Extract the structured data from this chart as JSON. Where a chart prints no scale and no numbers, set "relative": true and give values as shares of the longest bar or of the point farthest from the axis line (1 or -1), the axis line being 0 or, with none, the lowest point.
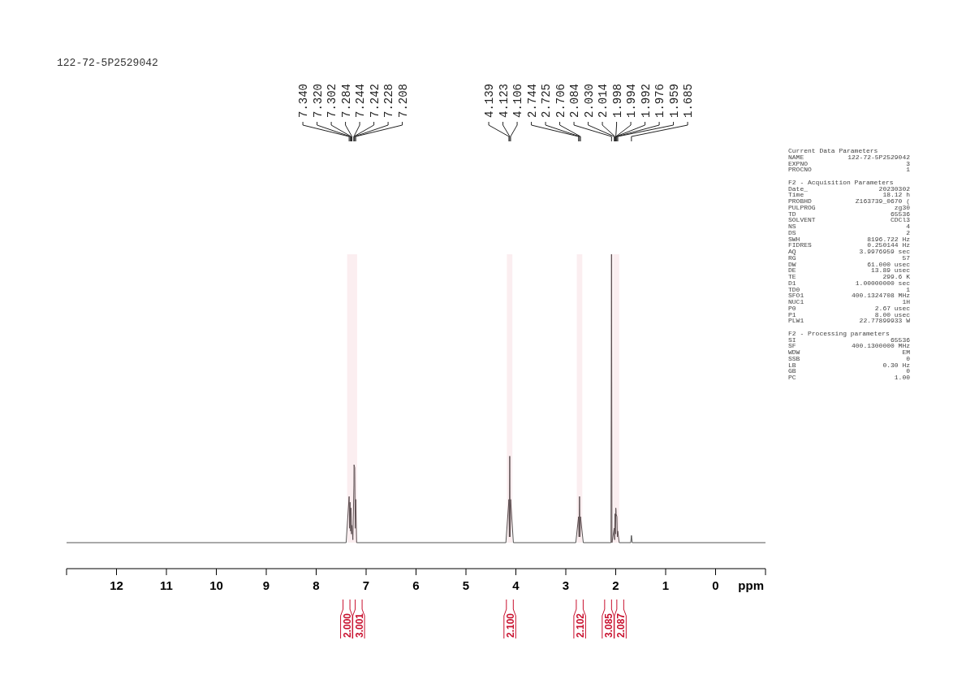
{
  "chart_data": {
    "type": "line",
    "title": "122-72-5P2529042",
    "xlabel": "ppm",
    "relative": true,
    "xlim": [
      13,
      -1
    ],
    "xticks": [
      12,
      11,
      10,
      9,
      8,
      7,
      6,
      5,
      4,
      3,
      2,
      1,
      0
    ],
    "line_style": "solid",
    "series": [
      {
        "color": "#555555",
        "x": [
          13,
          7.4,
          7.34,
          7.33,
          7.32,
          7.31,
          7.302,
          7.292,
          7.284,
          7.265,
          7.244,
          7.242,
          7.228,
          7.218,
          7.208,
          7.19,
          4.2,
          4.139,
          4.131,
          4.123,
          4.115,
          4.106,
          4.05,
          2.8,
          2.744,
          2.735,
          2.725,
          2.715,
          2.706,
          2.65,
          2.095,
          2.084,
          2.075,
          2.03,
          2.022,
          2.014,
          2.006,
          1.998,
          1.994,
          1.992,
          1.976,
          1.968,
          1.959,
          1.93,
          1.7,
          1.685,
          1.67,
          -1
        ],
        "values": [
          0,
          0,
          0.16,
          0.05,
          0.14,
          0.04,
          0.12,
          0.03,
          0.06,
          0.01,
          0.2,
          0.27,
          0.26,
          0.05,
          0.15,
          0,
          0,
          0.15,
          0.02,
          0.3,
          0.02,
          0.15,
          0,
          0,
          0.09,
          0.02,
          0.16,
          0.02,
          0.09,
          0,
          0,
          1,
          0,
          0.05,
          0.01,
          0.1,
          0.03,
          0.12,
          0.11,
          0.1,
          0.09,
          0.02,
          0.04,
          0,
          0,
          0.025,
          0,
          0
        ]
      }
    ],
    "bands": [
      {
        "axis": "x",
        "from": 7.38,
        "to": 7.27,
        "label": "2.000",
        "color": "#c8102e"
      },
      {
        "axis": "x",
        "from": 7.27,
        "to": 7.18,
        "label": "3.001",
        "color": "#c8102e"
      },
      {
        "axis": "x",
        "from": 4.18,
        "to": 4.07,
        "label": "2.100",
        "color": "#c8102e"
      },
      {
        "axis": "x",
        "from": 2.78,
        "to": 2.67,
        "label": "2.102",
        "color": "#c8102e"
      },
      {
        "axis": "x",
        "from": 2.1,
        "to": 2.06,
        "label": "3.085",
        "color": "#c8102e"
      },
      {
        "axis": "x",
        "from": 2.05,
        "to": 1.93,
        "label": "2.087",
        "color": "#c8102e"
      }
    ],
    "annotations": [
      "7.340",
      "7.320",
      "7.302",
      "7.284",
      "7.244",
      "7.242",
      "7.228",
      "7.208",
      "4.139",
      "4.123",
      "4.106",
      "2.744",
      "2.725",
      "2.706",
      "2.084",
      "2.030",
      "2.014",
      "1.998",
      "1.994",
      "1.992",
      "1.976",
      "1.959",
      "1.685",
      "Current Data Parameters",
      "NAME\t122-72-5P2529042",
      "EXPNO\t3",
      "PROCNO\t1",
      "F2 - Acquisition Parameters",
      "Date_\t20230302",
      "Time\t18.12 h",
      "PROBHD\tZ163739_0670 (",
      "PULPROG\tzg30",
      "TD\t65536",
      "SOLVENT\tCDCl3",
      "NS\t4",
      "DS\t2",
      "SWH\t8196.722 Hz",
      "FIDRES\t0.250144 Hz",
      "AQ\t3.9976959 sec",
      "RG\t57",
      "DW\t61.000 usec",
      "DE\t13.89 usec",
      "TE\t299.6 K",
      "D1\t1.00000000 sec",
      "TD0\t1",
      "SFO1\t400.1324708 MHz",
      "NUC1\t1H",
      "P0\t2.67 usec",
      "P1\t8.00 usec",
      "PLW1\t22.77899933 W",
      "F2 - Processing parameters",
      "SI\t65536",
      "SF\t400.1300000 MHz",
      "WDW\tEM",
      "SSB\t0",
      "LB\t0.30 Hz",
      "GB\t0",
      "PC\t1.00"
    ]
  }
}
